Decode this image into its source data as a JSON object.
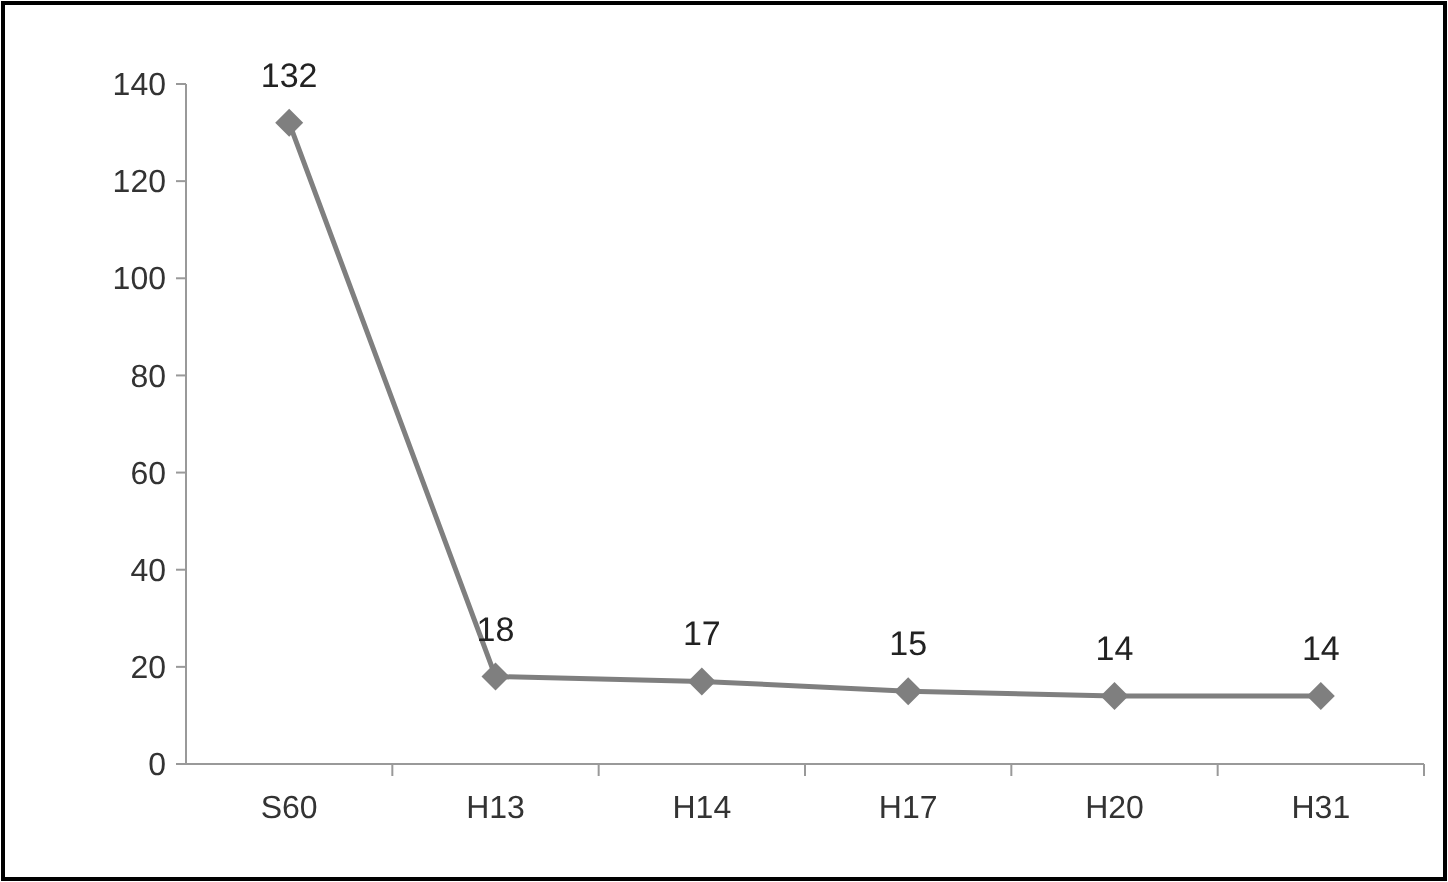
{
  "chart_data": {
    "type": "line",
    "categories": [
      "S60",
      "H13",
      "H14",
      "H17",
      "H20",
      "H31"
    ],
    "values": [
      132,
      18,
      17,
      15,
      14,
      14
    ],
    "color": "#7f7f7f",
    "ylim": [
      0,
      140
    ],
    "yticks": [
      0,
      20,
      40,
      60,
      80,
      100,
      120,
      140
    ],
    "grid": false,
    "marker": "diamond",
    "line_style": "solid",
    "data_labels": true
  }
}
